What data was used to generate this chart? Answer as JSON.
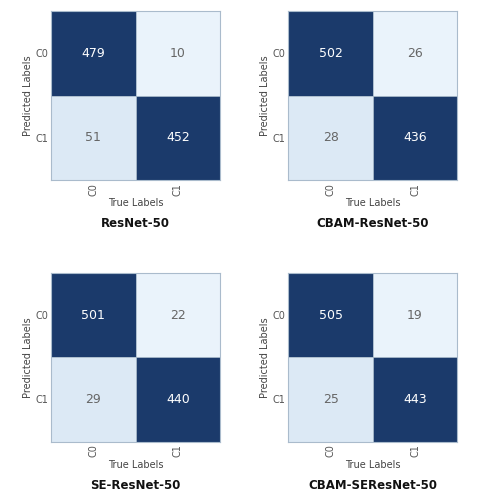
{
  "models": [
    "ResNet-50",
    "CBAM-ResNet-50",
    "SE-ResNet-50",
    "CBAM-SEResNet-50"
  ],
  "matrices": [
    [
      [
        479,
        10
      ],
      [
        51,
        452
      ]
    ],
    [
      [
        502,
        26
      ],
      [
        28,
        436
      ]
    ],
    [
      [
        501,
        22
      ],
      [
        29,
        440
      ]
    ],
    [
      [
        505,
        19
      ],
      [
        25,
        443
      ]
    ]
  ],
  "class_labels": [
    "C0",
    "C1"
  ],
  "xlabel": "True Labels",
  "ylabel": "Predicted Labels",
  "x_tick_labels": [
    "C0",
    "C1"
  ],
  "y_tick_labels": [
    "C1",
    "C0"
  ],
  "dark_blue": "#1b3a6b",
  "light_blue": "#dce9f5",
  "very_light_blue": "#eaf3fb",
  "bg_color": "#ffffff",
  "text_color_dark": "#ffffff",
  "text_color_light": "#666666",
  "border_color": "#aabbcc",
  "title_fontsize": 8.5,
  "label_fontsize": 7,
  "tick_fontsize": 7,
  "value_fontsize": 9
}
